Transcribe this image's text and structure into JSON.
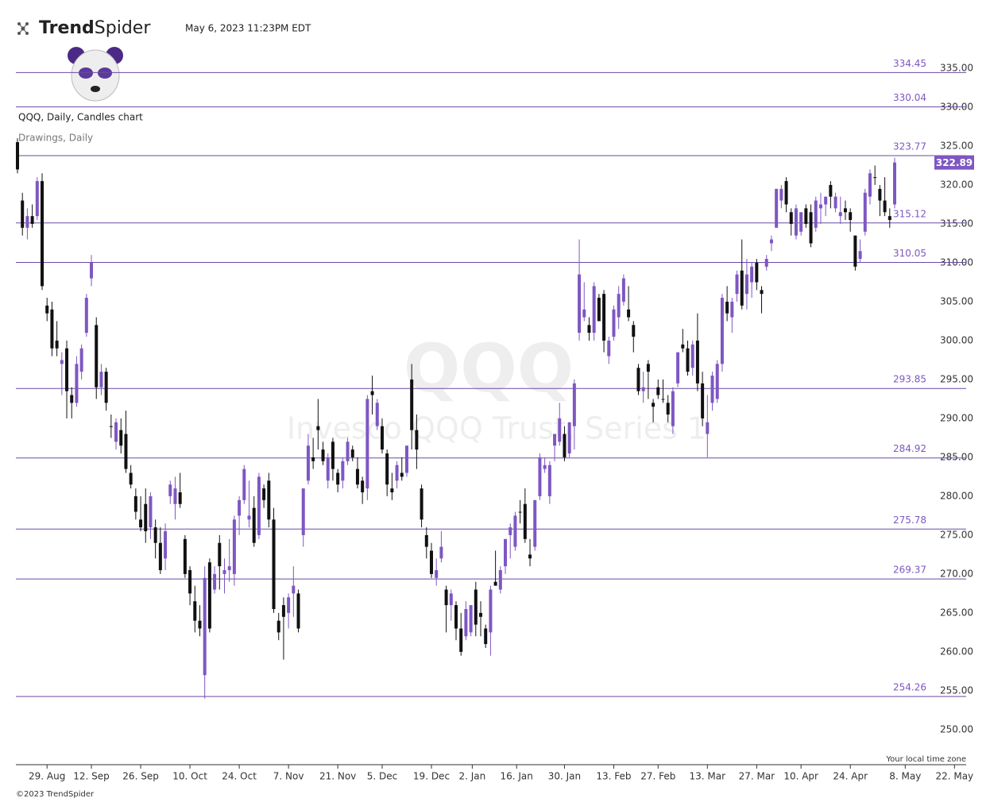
{
  "header": {
    "brand": [
      "Trend",
      "Spider"
    ],
    "timestamp": "May 6, 2023 11:23PM EDT",
    "footer": "©2023 TrendSpider",
    "timezone_note": "Your local time zone"
  },
  "chart_data": {
    "type": "candlestick",
    "title": "QQQ, Daily, Candles chart",
    "subtitle": "Drawings, Daily",
    "watermark": "QQQ",
    "watermark_name": "Invesco QQQ Trust, Series 1",
    "up_color": "#7e57c2",
    "down_color": "#111111",
    "level_color": "#6a4aa8",
    "x": [
      "19. Aug",
      "22. Aug",
      "23. Aug",
      "24. Aug",
      "25. Aug",
      "26. Aug",
      "29. Aug",
      "30. Aug",
      "31. Aug",
      "1. Sep",
      "2. Sep",
      "6. Sep",
      "7. Sep",
      "8. Sep",
      "9. Sep",
      "12. Sep",
      "13. Sep",
      "14. Sep",
      "15. Sep",
      "16. Sep",
      "19. Sep",
      "20. Sep",
      "21. Sep",
      "22. Sep",
      "23. Sep",
      "26. Sep",
      "27. Sep",
      "28. Sep",
      "29. Sep",
      "30. Sep",
      "3. Oct",
      "4. Oct",
      "5. Oct",
      "6. Oct",
      "7. Oct",
      "10. Oct",
      "11. Oct",
      "12. Oct",
      "13. Oct",
      "14. Oct",
      "17. Oct",
      "18. Oct",
      "19. Oct",
      "20. Oct",
      "21. Oct",
      "24. Oct",
      "25. Oct",
      "26. Oct",
      "27. Oct",
      "28. Oct",
      "31. Oct",
      "1. Nov",
      "2. Nov",
      "3. Nov",
      "4. Nov",
      "7. Nov",
      "8. Nov",
      "9. Nov",
      "10. Nov",
      "11. Nov",
      "14. Nov",
      "15. Nov",
      "16. Nov",
      "17. Nov",
      "18. Nov",
      "21. Nov",
      "22. Nov",
      "23. Nov",
      "25. Nov",
      "28. Nov",
      "29. Nov",
      "30. Nov",
      "1. Dec",
      "2. Dec",
      "5. Dec",
      "6. Dec",
      "7. Dec",
      "8. Dec",
      "9. Dec",
      "12. Dec",
      "13. Dec",
      "14. Dec",
      "15. Dec",
      "16. Dec",
      "19. Dec",
      "20. Dec",
      "21. Dec",
      "22. Dec",
      "23. Dec",
      "27. Dec",
      "28. Dec",
      "29. Dec",
      "30. Dec",
      "3. Jan",
      "4. Jan",
      "5. Jan",
      "6. Jan",
      "9. Jan",
      "10. Jan",
      "11. Jan",
      "12. Jan",
      "13. Jan",
      "17. Jan",
      "18. Jan",
      "19. Jan",
      "20. Jan",
      "23. Jan",
      "24. Jan",
      "25. Jan",
      "26. Jan",
      "27. Jan",
      "30. Jan",
      "31. Jan",
      "1. Feb",
      "2. Feb",
      "3. Feb",
      "6. Feb",
      "7. Feb",
      "8. Feb",
      "9. Feb",
      "10. Feb",
      "13. Feb",
      "14. Feb",
      "15. Feb",
      "16. Feb",
      "17. Feb",
      "21. Feb",
      "22. Feb",
      "23. Feb",
      "24. Feb",
      "27. Feb",
      "28. Feb",
      "1. Mar",
      "2. Mar",
      "3. Mar",
      "6. Mar",
      "7. Mar",
      "8. Mar",
      "9. Mar",
      "10. Mar",
      "13. Mar",
      "14. Mar",
      "15. Mar",
      "16. Mar",
      "17. Mar",
      "20. Mar",
      "21. Mar",
      "22. Mar",
      "23. Mar",
      "24. Mar",
      "27. Mar",
      "28. Mar",
      "29. Mar",
      "30. Mar",
      "31. Mar",
      "3. Apr",
      "4. Apr",
      "5. Apr",
      "6. Apr",
      "10. Apr",
      "11. Apr",
      "12. Apr",
      "13. Apr",
      "14. Apr",
      "17. Apr",
      "18. Apr",
      "19. Apr",
      "20. Apr",
      "21. Apr",
      "24. Apr",
      "25. Apr",
      "26. Apr",
      "27. Apr",
      "28. Apr",
      "1. May",
      "2. May",
      "3. May",
      "4. May",
      "5. May"
    ],
    "open": [
      325.5,
      318,
      314.5,
      316,
      316,
      320.5,
      304.5,
      304,
      300,
      297,
      299,
      293,
      292,
      296,
      301,
      308,
      302,
      294,
      296,
      289,
      287,
      288.5,
      288,
      283,
      280,
      277,
      279,
      276,
      276,
      274,
      272,
      280,
      279,
      280.5,
      274.5,
      270.5,
      266.5,
      264,
      257,
      271.5,
      268,
      274,
      270,
      270.5,
      270,
      277.5,
      279.5,
      277,
      278.5,
      275,
      281,
      282,
      277,
      264,
      266,
      265,
      267.5,
      267.5,
      275,
      282,
      285,
      289,
      286,
      282,
      287,
      283,
      282,
      284.5,
      286,
      283.5,
      282,
      281,
      293.5,
      289,
      289,
      285.5,
      281,
      282,
      283,
      283,
      295,
      288.5,
      281,
      275,
      273,
      269.5,
      272,
      268,
      266,
      266,
      263,
      262,
      262.5,
      268,
      265,
      263,
      262.5,
      269,
      268,
      271,
      275,
      273.5,
      278,
      279,
      272.5,
      273.5,
      280,
      283.5,
      280,
      286.5,
      287,
      288,
      285.5,
      289,
      301,
      303,
      302,
      301,
      305.5,
      306,
      298,
      300.5,
      303,
      305,
      304,
      302,
      296.5,
      293.5,
      297,
      292,
      294,
      292.5,
      292,
      289,
      294.5,
      299.5,
      299,
      296.5,
      300,
      294.5,
      288,
      292,
      292.5,
      297,
      305,
      303,
      306,
      309,
      306,
      307.5,
      310,
      306.5,
      309.5,
      312.5,
      314.5,
      318,
      320.5,
      316.5,
      313.5,
      314,
      317,
      316.5,
      314.5,
      317,
      317.5,
      320,
      317,
      316,
      317,
      316.5,
      313.5,
      310.5,
      314,
      318.5,
      321,
      319.5,
      318,
      316,
      317.5
    ],
    "high": [
      326,
      319,
      317,
      317.5,
      321,
      321.5,
      305.5,
      305,
      302.5,
      298.5,
      300,
      294,
      298,
      299.5,
      306,
      311,
      303,
      297,
      296.5,
      290.5,
      290,
      290,
      291,
      284,
      281,
      280,
      281,
      280.5,
      277,
      276,
      276.5,
      282,
      282.5,
      283,
      275,
      271,
      268.5,
      266,
      271,
      272,
      271,
      275,
      272,
      274.5,
      277.5,
      280,
      284,
      282,
      280,
      283,
      281.5,
      283,
      278.5,
      265,
      267,
      267.5,
      271,
      268,
      281,
      288,
      287.5,
      292.5,
      287,
      285.5,
      287.5,
      283.5,
      285,
      287.5,
      286.5,
      285,
      282.5,
      293,
      295.5,
      292.5,
      290,
      286,
      283,
      284.5,
      285,
      286.5,
      297,
      290.5,
      281.5,
      276,
      274,
      272,
      275.5,
      268.5,
      268,
      266.5,
      265,
      266.5,
      266,
      269,
      266.5,
      263.5,
      268.5,
      273,
      271,
      274.5,
      276.5,
      278,
      279.5,
      281,
      274.5,
      279.5,
      285.5,
      285,
      284.5,
      288,
      292,
      289,
      289.5,
      295,
      313,
      307.5,
      303,
      307.5,
      306,
      306.5,
      300.5,
      304.5,
      307,
      308.5,
      307,
      302.5,
      297,
      296,
      297.5,
      292.5,
      295,
      295,
      293,
      294,
      298.5,
      301.5,
      300,
      300,
      303.5,
      296,
      293,
      296,
      297.5,
      306,
      307,
      305.5,
      309,
      313,
      310.5,
      310,
      310.5,
      307,
      311,
      313.5,
      319.5,
      320,
      321,
      317,
      317.5,
      316.5,
      317.5,
      317.5,
      318.5,
      319,
      318.5,
      320.5,
      319,
      318.5,
      318,
      317,
      313.5,
      313,
      319.5,
      322,
      322.5,
      320,
      321,
      317,
      323.5
    ],
    "low": [
      321.5,
      313.5,
      313,
      314.5,
      315.5,
      306.5,
      302.5,
      298,
      298,
      293,
      290,
      290,
      291.5,
      295,
      300.5,
      307,
      292.5,
      293,
      291,
      287.5,
      286,
      285.5,
      283,
      281,
      277,
      275.5,
      274,
      274.5,
      272,
      270,
      270.5,
      279,
      277,
      278.5,
      269.5,
      266,
      262.5,
      262,
      254,
      262.5,
      267.5,
      268,
      267.5,
      269,
      268.5,
      275,
      279,
      276,
      273.5,
      274.5,
      278.5,
      276,
      265,
      261.5,
      259,
      263,
      264.5,
      262.5,
      273.5,
      281.5,
      283.5,
      286,
      284,
      281,
      282,
      280.5,
      281,
      284,
      284.5,
      281,
      279,
      279.5,
      290.5,
      288.5,
      285.5,
      280,
      279.5,
      281,
      282,
      282.5,
      286,
      283.5,
      276,
      272,
      269.5,
      268.5,
      271.5,
      262.5,
      264,
      261.5,
      259.5,
      261.5,
      262,
      262,
      262,
      260.5,
      259.5,
      268.5,
      267.5,
      270,
      272,
      273,
      276.5,
      274,
      271,
      273,
      279.5,
      283,
      279,
      284.5,
      286.5,
      284.5,
      285,
      286,
      300,
      302.5,
      300,
      300,
      302.5,
      298.5,
      297,
      300,
      301.5,
      304.5,
      302.5,
      298.5,
      293,
      292,
      292.5,
      289.5,
      292.5,
      292,
      289.5,
      288,
      294,
      298.5,
      295.5,
      295.5,
      293.5,
      289,
      285,
      291,
      292,
      296,
      302.5,
      301,
      305,
      304,
      304,
      305.5,
      306.5,
      303.5,
      309,
      311.5,
      314.5,
      317,
      316.5,
      313.5,
      313,
      313.5,
      314.5,
      312,
      314,
      315,
      316,
      317,
      316.5,
      315,
      315.5,
      314,
      309,
      310,
      313.5,
      317.5,
      320,
      316,
      316,
      314.5,
      317
    ],
    "close": [
      322,
      314.5,
      316,
      315,
      320.5,
      307,
      303.5,
      299,
      299,
      297.5,
      293.5,
      292,
      297,
      299,
      305.5,
      310,
      294,
      296,
      292,
      289,
      289.5,
      286.5,
      283.5,
      281.5,
      278,
      276,
      275.5,
      280,
      274,
      270.5,
      275.5,
      281.5,
      281,
      279,
      270,
      267.5,
      264,
      263,
      269.5,
      263,
      270,
      271,
      270.5,
      271,
      277,
      279.5,
      283.5,
      277.5,
      274,
      282.5,
      279.5,
      277,
      265.5,
      262.5,
      264.5,
      267,
      268.5,
      263,
      281,
      286.5,
      284.5,
      288.5,
      284.5,
      285,
      283.5,
      281.5,
      284.5,
      287,
      285,
      281.5,
      280.5,
      292.5,
      293,
      292,
      286,
      281.5,
      280.5,
      284,
      282.5,
      286.5,
      288.5,
      286,
      277,
      273.5,
      270,
      270.5,
      273.5,
      266,
      267.5,
      263,
      260,
      265.5,
      266,
      263.5,
      264.5,
      261,
      268,
      268.5,
      270.5,
      274.5,
      276,
      277.5,
      278,
      274.5,
      272,
      279.5,
      285,
      284,
      284,
      288,
      290,
      285,
      289.5,
      294.5,
      308.5,
      304,
      301,
      307,
      302.5,
      300,
      300,
      304,
      306,
      308,
      303,
      300.5,
      293.5,
      294,
      296,
      291.5,
      293,
      292.5,
      290.5,
      293.5,
      298.5,
      299,
      296,
      299.5,
      294.5,
      290,
      289.5,
      295.5,
      297,
      305.5,
      303.5,
      305,
      308.5,
      304.5,
      308.5,
      309.5,
      307.5,
      306,
      310.5,
      313,
      319.5,
      319.5,
      317.5,
      315,
      317,
      316.5,
      315,
      312.5,
      318,
      317.5,
      318.5,
      318.5,
      318.5,
      316.5,
      316.5,
      315.5,
      309.5,
      311.5,
      319,
      321.5,
      321,
      318,
      316.5,
      315.5,
      322.89
    ],
    "levels": [
      334.45,
      330.04,
      323.77,
      315.12,
      310.05,
      293.85,
      284.92,
      275.78,
      269.37,
      254.26
    ],
    "ylim": [
      245.6,
      337.65
    ],
    "yticks": [
      {
        "value": 250,
        "label": "250.00"
      },
      {
        "value": 255,
        "label": "255.00"
      },
      {
        "value": 260,
        "label": "260.00"
      },
      {
        "value": 265,
        "label": "265.00"
      },
      {
        "value": 270,
        "label": "270.00"
      },
      {
        "value": 275,
        "label": "275.00"
      },
      {
        "value": 280,
        "label": "280.00"
      },
      {
        "value": 285,
        "label": "285.00"
      },
      {
        "value": 290,
        "label": "290.00"
      },
      {
        "value": 295,
        "label": "295.00"
      },
      {
        "value": 300,
        "label": "300.00"
      },
      {
        "value": 305,
        "label": "305.00"
      },
      {
        "value": 310,
        "label": "310.00"
      },
      {
        "value": 315,
        "label": "315.00"
      },
      {
        "value": 320,
        "label": "320.00"
      },
      {
        "value": 325,
        "label": "325.00"
      },
      {
        "value": 330,
        "label": "330.00"
      },
      {
        "value": 335,
        "label": "335.00"
      }
    ],
    "xticks": [
      "29. Aug",
      "12. Sep",
      "26. Sep",
      "10. Oct",
      "24. Oct",
      "7. Nov",
      "21. Nov",
      "5. Dec",
      "19. Dec",
      "2. Jan",
      "16. Jan",
      "30. Jan",
      "13. Feb",
      "27. Feb",
      "13. Mar",
      "27. Mar",
      "10. Apr",
      "24. Apr",
      "8. May",
      "22. May"
    ]
  }
}
